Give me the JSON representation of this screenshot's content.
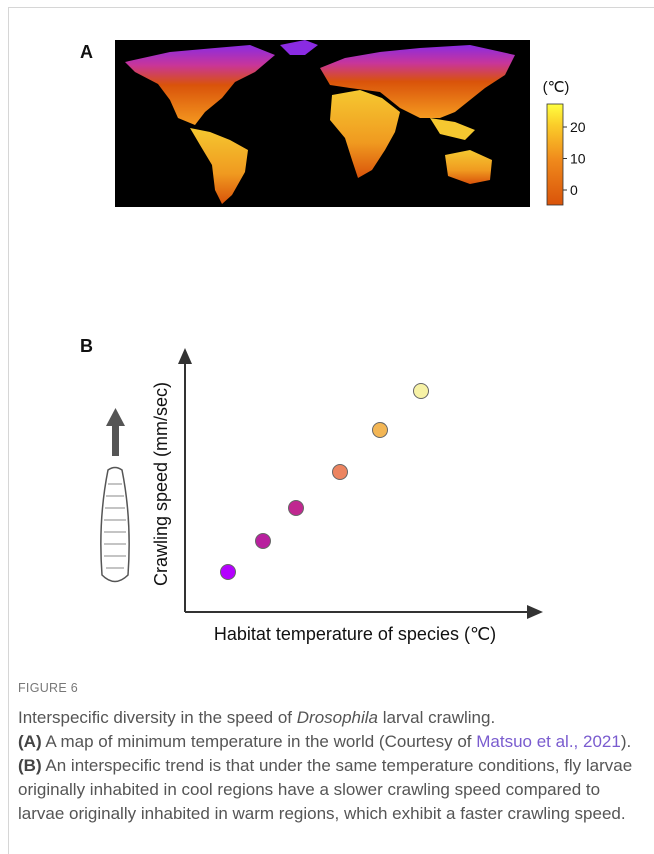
{
  "panels": [
    {
      "label": "A",
      "colorbar": {
        "unit": "(℃)",
        "ticks": [
          20,
          10,
          0
        ]
      }
    },
    {
      "label": "B",
      "y_label": "Crawling speed (mm/sec)",
      "x_label": "Habitat temperature of species (℃)"
    }
  ],
  "caption": {
    "label": "FIGURE 6",
    "title": [
      "Interspecific diversity in the speed of ",
      "Drosophila",
      " larval crawling."
    ],
    "text_a": [
      "(A)",
      " A map of minimum temperature in the world (Courtesy of ",
      "Matsuo et al., 2021",
      ")."
    ],
    "text_b": [
      "(B)",
      " An interspecific trend is that under the same temperature conditions, fly larvae originally inhabited in cool regions have a slower crawling speed compared to larvae originally inhabited in warm regions, which exhibit a faster crawling speed."
    ]
  }
}
